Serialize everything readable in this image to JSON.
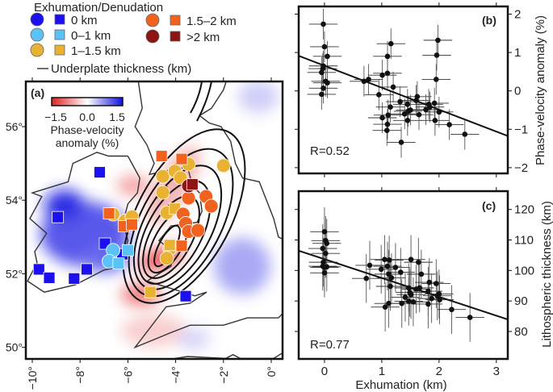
{
  "legend": {
    "title": "Exhumation/Denudation",
    "classes": [
      {
        "label": "0 km",
        "color": "#1c10ee"
      },
      {
        "label": "0–1 km",
        "color": "#5cc2f6"
      },
      {
        "label": "1–1.5 km",
        "color": "#e9b232"
      },
      {
        "label": "1.5–2 km",
        "color": "#f2621f"
      },
      {
        "label": ">2 km",
        "color": "#8c1412"
      }
    ],
    "line_label": "Underplate thickness (km)"
  },
  "map": {
    "panel_label": "(a)",
    "colorbar": {
      "ticks": [
        "−1.5",
        "0.0",
        "1.5"
      ],
      "label_line1": "Phase-velocity",
      "label_line2": "anomaly (%)",
      "colors": [
        "#e02020",
        "#ffffff",
        "#1010e0"
      ]
    },
    "lon_ticks": [
      "−10°",
      "−8°",
      "−6°",
      "−4°",
      "−2°",
      "0°"
    ],
    "lat_ticks": [
      "56°",
      "54°",
      "52°",
      "50°"
    ],
    "markers": [
      {
        "shape": "square",
        "cls": 0,
        "lon": -7.18,
        "lat": 54.76
      },
      {
        "shape": "square",
        "cls": 0,
        "lon": -8.93,
        "lat": 53.54
      },
      {
        "shape": "square",
        "cls": 0,
        "lon": -6.96,
        "lat": 52.82
      },
      {
        "shape": "square",
        "cls": 0,
        "lon": -9.72,
        "lat": 52.12
      },
      {
        "shape": "square",
        "cls": 0,
        "lon": -9.29,
        "lat": 51.89
      },
      {
        "shape": "square",
        "cls": 0,
        "lon": -8.25,
        "lat": 51.87
      },
      {
        "shape": "square",
        "cls": 0,
        "lon": -7.72,
        "lat": 52.12
      },
      {
        "shape": "square",
        "cls": 0,
        "lon": -3.58,
        "lat": 51.39
      },
      {
        "shape": "square",
        "cls": 0,
        "lon": -6.23,
        "lat": 52.53
      },
      {
        "shape": "circle",
        "cls": 1,
        "lon": -6.62,
        "lat": 52.64
      },
      {
        "shape": "circle",
        "cls": 1,
        "lon": -6.79,
        "lat": 52.34
      },
      {
        "shape": "square",
        "cls": 1,
        "lon": -6.0,
        "lat": 52.64
      },
      {
        "shape": "square",
        "cls": 1,
        "lon": -6.39,
        "lat": 52.28
      },
      {
        "shape": "circle",
        "cls": 2,
        "lon": -6.62,
        "lat": 53.62
      },
      {
        "shape": "circle",
        "cls": 2,
        "lon": -6.11,
        "lat": 53.44
      },
      {
        "shape": "circle",
        "cls": 2,
        "lon": -5.83,
        "lat": 53.55
      },
      {
        "shape": "circle",
        "cls": 2,
        "lon": -4.54,
        "lat": 54.65
      },
      {
        "shape": "circle",
        "cls": 2,
        "lon": -4.54,
        "lat": 54.21
      },
      {
        "shape": "circle",
        "cls": 2,
        "lon": -4.03,
        "lat": 54.79
      },
      {
        "shape": "circle",
        "cls": 2,
        "lon": -3.46,
        "lat": 54.98
      },
      {
        "shape": "circle",
        "cls": 2,
        "lon": -3.8,
        "lat": 54.61
      },
      {
        "shape": "circle",
        "cls": 2,
        "lon": -2.0,
        "lat": 54.94
      },
      {
        "shape": "circle",
        "cls": 2,
        "lon": -4.37,
        "lat": 53.66
      },
      {
        "shape": "circle",
        "cls": 2,
        "lon": -4.25,
        "lat": 52.67
      },
      {
        "shape": "circle",
        "cls": 2,
        "lon": -4.37,
        "lat": 52.42
      },
      {
        "shape": "square",
        "cls": 2,
        "lon": -4.03,
        "lat": 53.77
      },
      {
        "shape": "square",
        "cls": 2,
        "lon": -4.25,
        "lat": 52.78
      },
      {
        "shape": "square",
        "cls": 2,
        "lon": -5.06,
        "lat": 51.5
      },
      {
        "shape": "circle",
        "cls": 3,
        "lon": -2.73,
        "lat": 54.1
      },
      {
        "shape": "circle",
        "cls": 3,
        "lon": -2.51,
        "lat": 53.84
      },
      {
        "shape": "circle",
        "cls": 3,
        "lon": -3.46,
        "lat": 54.06
      },
      {
        "shape": "circle",
        "cls": 3,
        "lon": -3.69,
        "lat": 53.62
      },
      {
        "shape": "circle",
        "cls": 3,
        "lon": -3.58,
        "lat": 53.37
      },
      {
        "shape": "circle",
        "cls": 3,
        "lon": -3.46,
        "lat": 53.15
      },
      {
        "shape": "circle",
        "cls": 3,
        "lon": -3.07,
        "lat": 53.18
      },
      {
        "shape": "square",
        "cls": 3,
        "lon": -4.59,
        "lat": 55.2
      },
      {
        "shape": "square",
        "cls": 3,
        "lon": -3.75,
        "lat": 55.12
      },
      {
        "shape": "square",
        "cls": 3,
        "lon": -6.79,
        "lat": 53.64
      },
      {
        "shape": "square",
        "cls": 3,
        "lon": -6.17,
        "lat": 53.29
      },
      {
        "shape": "square",
        "cls": 3,
        "lon": -5.83,
        "lat": 53.34
      },
      {
        "shape": "square",
        "cls": 3,
        "lon": -3.75,
        "lat": 52.76
      },
      {
        "shape": "circle",
        "cls": 4,
        "lon": -3.46,
        "lat": 54.39
      },
      {
        "shape": "square",
        "cls": 4,
        "lon": -3.3,
        "lat": 54.43
      }
    ]
  },
  "chart_data": [
    {
      "type": "scatter",
      "panel_label": "(b)",
      "annotation": "R=0.52",
      "ylabel": "Phase-velocity anomaly (%)",
      "xlim": [
        -0.45,
        3.2
      ],
      "ylim": [
        -2.15,
        2.2
      ],
      "xticks": [
        0,
        1,
        2,
        3
      ],
      "yticks": [
        -2,
        -1,
        0,
        1,
        2
      ],
      "ytick_labels": [
        "−2",
        "−1",
        "0",
        "1",
        "2"
      ],
      "xerr": 0.25,
      "yerr": 0.4,
      "fit": {
        "slope": -0.572,
        "intercept": 0.656
      },
      "points": [
        [
          -0.02,
          1.74
        ],
        [
          0.0,
          1.15
        ],
        [
          0.05,
          0.9
        ],
        [
          -0.02,
          0.65
        ],
        [
          -0.03,
          0.58
        ],
        [
          -0.05,
          0.48
        ],
        [
          0.02,
          0.25
        ],
        [
          0.05,
          0.21
        ],
        [
          -0.02,
          0.07
        ],
        [
          -0.05,
          -0.09
        ],
        [
          0.69,
          0.25
        ],
        [
          0.77,
          0.3
        ],
        [
          1.01,
          0.41
        ],
        [
          1.1,
          0.9
        ],
        [
          1.16,
          1.23
        ],
        [
          1.1,
          0.46
        ],
        [
          1.2,
          0.1
        ],
        [
          0.95,
          -0.1
        ],
        [
          1.01,
          -0.7
        ],
        [
          1.11,
          -0.63
        ],
        [
          1.15,
          -0.42
        ],
        [
          1.1,
          -0.87
        ],
        [
          1.09,
          -1.03
        ],
        [
          1.34,
          -1.34
        ],
        [
          1.32,
          -0.28
        ],
        [
          1.4,
          -0.6
        ],
        [
          1.45,
          -0.35
        ],
        [
          1.46,
          -0.53
        ],
        [
          1.45,
          -0.77
        ],
        [
          1.5,
          -0.5
        ],
        [
          1.6,
          -0.25
        ],
        [
          1.62,
          -0.15
        ],
        [
          1.65,
          -0.62
        ],
        [
          1.77,
          -0.49
        ],
        [
          1.82,
          -0.35
        ],
        [
          1.84,
          -0.42
        ],
        [
          1.92,
          -0.32
        ],
        [
          1.93,
          -0.77
        ],
        [
          1.95,
          0.3
        ],
        [
          1.96,
          0.93
        ],
        [
          1.98,
          1.32
        ],
        [
          2.0,
          -0.55
        ],
        [
          2.18,
          -0.88
        ],
        [
          2.45,
          -1.13
        ]
      ]
    },
    {
      "type": "scatter",
      "panel_label": "(c)",
      "annotation": "R=0.77",
      "xlabel": "Exhumation (km)",
      "ylabel": "Lithospheric thickness (km)",
      "xlim": [
        -0.45,
        3.2
      ],
      "ylim": [
        71,
        126
      ],
      "xticks": [
        0,
        1,
        2,
        3
      ],
      "yticks": [
        80,
        90,
        100,
        110,
        120
      ],
      "xtick_labels": [
        "0",
        "1",
        "2",
        "3"
      ],
      "ytick_labels": [
        "80",
        "90",
        "100",
        "110",
        "120"
      ],
      "xerr": 0.25,
      "yerr": 8,
      "fit": {
        "slope": -6.17,
        "intercept": 103.7
      },
      "points": [
        [
          0,
          112.7
        ],
        [
          -0.03,
          107.2
        ],
        [
          0.02,
          109.8
        ],
        [
          0.04,
          108.9
        ],
        [
          0.02,
          105.6
        ],
        [
          -0.02,
          102.7
        ],
        [
          0,
          101
        ],
        [
          0.04,
          101.2
        ],
        [
          -0.03,
          101.4
        ],
        [
          0,
          99.2
        ],
        [
          0.73,
          97.4
        ],
        [
          0.79,
          101.7
        ],
        [
          0.99,
          100.4
        ],
        [
          1.05,
          103.6
        ],
        [
          1.13,
          103.4
        ],
        [
          1.1,
          101.4
        ],
        [
          1.12,
          98.8
        ],
        [
          1.17,
          97.6
        ],
        [
          1.15,
          94.8
        ],
        [
          1.24,
          101
        ],
        [
          1.33,
          99.4
        ],
        [
          1.06,
          88
        ],
        [
          1.12,
          89.2
        ],
        [
          1.35,
          89.2
        ],
        [
          1.41,
          91.2
        ],
        [
          1.47,
          94.3
        ],
        [
          1.49,
          92.8
        ],
        [
          1.51,
          92.1
        ],
        [
          1.47,
          89.9
        ],
        [
          1.55,
          89.7
        ],
        [
          1.51,
          103.6
        ],
        [
          1.64,
          102.7
        ],
        [
          1.69,
          98.8
        ],
        [
          1.66,
          94.3
        ],
        [
          1.6,
          93.9
        ],
        [
          1.83,
          96.1
        ],
        [
          1.81,
          93.2
        ],
        [
          1.81,
          89
        ],
        [
          1.87,
          90.8
        ],
        [
          1.95,
          95.7
        ],
        [
          2.0,
          92.3
        ],
        [
          2.01,
          90.4
        ],
        [
          1.97,
          91.7
        ],
        [
          2.22,
          87.2
        ],
        [
          2.54,
          84.6
        ]
      ]
    }
  ]
}
